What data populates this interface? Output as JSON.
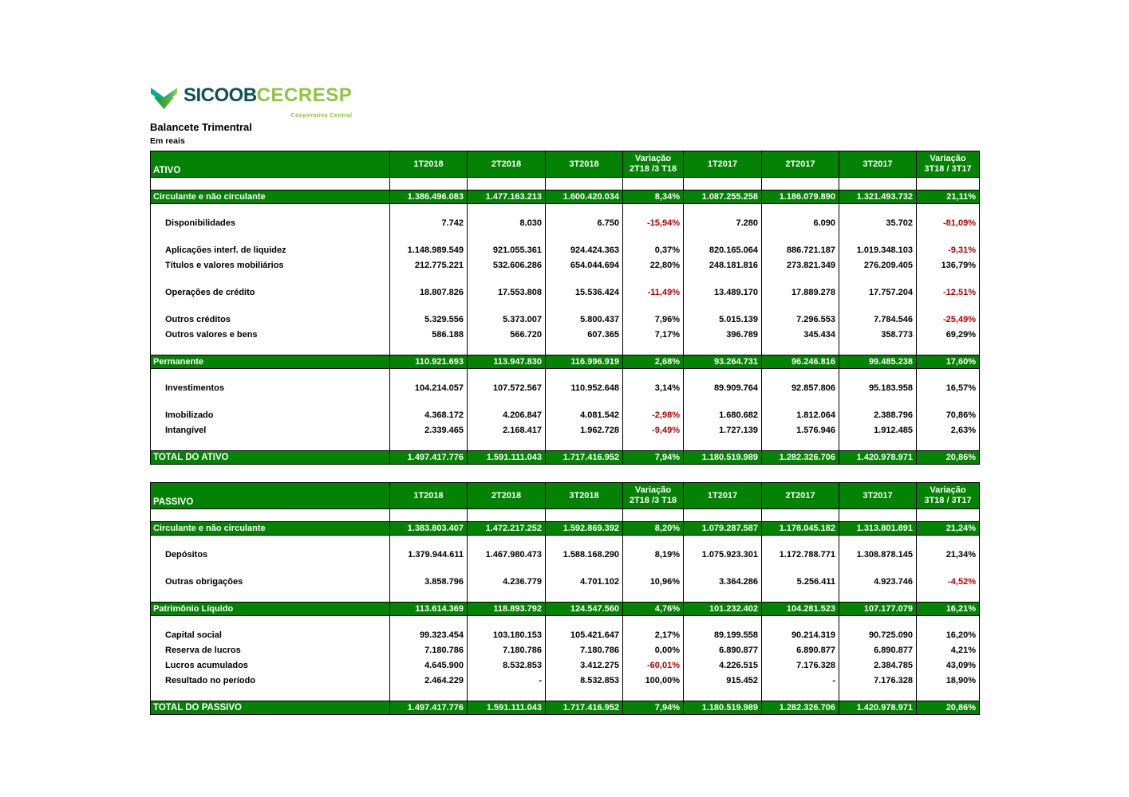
{
  "logo": {
    "sicoob": "SICOOB",
    "cecresp": "CECRESP",
    "tagline": "Cooperativa Central"
  },
  "title": "Balancete Trimentral",
  "subtitle": "Em reais",
  "colors": {
    "band_green": "#038203",
    "negative_red": "#b30000",
    "logo_teal": "#0d5156",
    "logo_lime": "#8dc63f",
    "mark_turquoise": "#00ae9d",
    "mark_green": "#009a57",
    "mark_lime": "#7db61c"
  },
  "columns": [
    "1T2018",
    "2T2018",
    "3T2018",
    "Variação\n2T18 /3 T18",
    "1T2017",
    "2T2017",
    "3T2017",
    "Variação\n3T18 / 3T17"
  ],
  "ativo": {
    "title": "ATIVO",
    "rows": [
      {
        "t": "spacer"
      },
      {
        "t": "section",
        "label": "Circulante e não circulante",
        "v": [
          "1.386.496.083",
          "1.477.163.213",
          "1.600.420.034",
          "8,34%",
          "1.087.255.258",
          "1.186.079.890",
          "1.321.493.732",
          "21,11%"
        ]
      },
      {
        "t": "spacer"
      },
      {
        "t": "item",
        "label": "Disponibilidades",
        "v": [
          "7.742",
          "8.030",
          "6.750",
          "-15,94%",
          "7.280",
          "6.090",
          "35.702",
          "-81,09%"
        ]
      },
      {
        "t": "spacer"
      },
      {
        "t": "item",
        "label": "Aplicações interf. de liquidez",
        "v": [
          "1.148.989.549",
          "921.055.361",
          "924.424.363",
          "0,37%",
          "820.165.064",
          "886.721.187",
          "1.019.348.103",
          "-9,31%"
        ]
      },
      {
        "t": "item",
        "label": "Títulos e valores mobiliários",
        "v": [
          "212.775.221",
          "532.606.286",
          "654.044.694",
          "22,80%",
          "248.181.816",
          "273.821.349",
          "276.209.405",
          "136,79%"
        ]
      },
      {
        "t": "spacer"
      },
      {
        "t": "item",
        "label": "Operações de crédito",
        "v": [
          "18.807.826",
          "17.553.808",
          "15.536.424",
          "-11,49%",
          "13.489.170",
          "17.889.278",
          "17.757.204",
          "-12,51%"
        ]
      },
      {
        "t": "spacer"
      },
      {
        "t": "item",
        "label": "Outros créditos",
        "v": [
          "5.329.556",
          "5.373.007",
          "5.800.437",
          "7,96%",
          "5.015.139",
          "7.296.553",
          "7.784.546",
          "-25,49%"
        ]
      },
      {
        "t": "item",
        "label": "Outros valores e bens",
        "v": [
          "586.188",
          "566.720",
          "607.365",
          "7,17%",
          "396.789",
          "345.434",
          "358.773",
          "69,29%"
        ]
      },
      {
        "t": "spacer"
      },
      {
        "t": "section",
        "label": "Permanente",
        "v": [
          "110.921.693",
          "113.947.830",
          "116.996.919",
          "2,68%",
          "93.264.731",
          "96.246.816",
          "99.485.238",
          "17,60%"
        ]
      },
      {
        "t": "spacer"
      },
      {
        "t": "item",
        "label": "Investimentos",
        "v": [
          "104.214.057",
          "107.572.567",
          "110.952.648",
          "3,14%",
          "89.909.764",
          "92.857.806",
          "95.183.958",
          "16,57%"
        ]
      },
      {
        "t": "spacer"
      },
      {
        "t": "item",
        "label": "Imobilizado",
        "v": [
          "4.368.172",
          "4.206.847",
          "4.081.542",
          "-2,98%",
          "1.680.682",
          "1.812.064",
          "2.388.796",
          "70,86%"
        ]
      },
      {
        "t": "item",
        "label": "Intangível",
        "v": [
          "2.339.465",
          "2.168.417",
          "1.962.728",
          "-9,49%",
          "1.727.139",
          "1.576.946",
          "1.912.485",
          "2,63%"
        ]
      },
      {
        "t": "spacer"
      },
      {
        "t": "total",
        "label": "TOTAL DO ATIVO",
        "v": [
          "1.497.417.776",
          "1.591.111.043",
          "1.717.416.952",
          "7,94%",
          "1.180.519.989",
          "1.282.326.706",
          "1.420.978.971",
          "20,86%"
        ]
      }
    ]
  },
  "passivo": {
    "title": "PASSIVO",
    "rows": [
      {
        "t": "spacer"
      },
      {
        "t": "section",
        "label": "Circulante e não circulante",
        "v": [
          "1.383.803.407",
          "1.472.217.252",
          "1.592.869.392",
          "8,20%",
          "1.079.287.587",
          "1.178.045.182",
          "1.313.801.891",
          "21,24%"
        ]
      },
      {
        "t": "spacer"
      },
      {
        "t": "item",
        "label": "Depósitos",
        "v": [
          "1.379.944.611",
          "1.467.980.473",
          "1.588.168.290",
          "8,19%",
          "1.075.923.301",
          "1.172.788.771",
          "1.308.878.145",
          "21,34%"
        ]
      },
      {
        "t": "spacer"
      },
      {
        "t": "item",
        "label": "Outras obrigações",
        "v": [
          "3.858.796",
          "4.236.779",
          "4.701.102",
          "10,96%",
          "3.364.286",
          "5.256.411",
          "4.923.746",
          "-4,52%"
        ]
      },
      {
        "t": "spacer"
      },
      {
        "t": "section",
        "label": "Patrimônio Líquido",
        "v": [
          "113.614.369",
          "118.893.792",
          "124.547.560",
          "4,76%",
          "101.232.402",
          "104.281.523",
          "107.177.079",
          "16,21%"
        ]
      },
      {
        "t": "spacer"
      },
      {
        "t": "item",
        "label": "Capital social",
        "v": [
          "99.323.454",
          "103.180.153",
          "105.421.647",
          "2,17%",
          "89.199.558",
          "90.214.319",
          "90.725.090",
          "16,20%"
        ]
      },
      {
        "t": "item",
        "label": "Reserva de lucros",
        "v": [
          "7.180.786",
          "7.180.786",
          "7.180.786",
          "0,00%",
          "6.890.877",
          "6.890.877",
          "6.890.877",
          "4,21%"
        ]
      },
      {
        "t": "item",
        "label": "Lucros acumulados",
        "v": [
          "4.645.900",
          "8.532.853",
          "3.412.275",
          "-60,01%",
          "4.226.515",
          "7.176.328",
          "2.384.785",
          "43,09%"
        ]
      },
      {
        "t": "item",
        "label": "Resultado no período",
        "v": [
          "2.464.229",
          "-",
          "8.532.853",
          "100,00%",
          "915.452",
          "-",
          "7.176.328",
          "18,90%"
        ]
      },
      {
        "t": "spacer"
      },
      {
        "t": "total",
        "label": "TOTAL DO PASSIVO",
        "v": [
          "1.497.417.776",
          "1.591.111.043",
          "1.717.416.952",
          "7,94%",
          "1.180.519.989",
          "1.282.326.706",
          "1.420.978.971",
          "20,86%"
        ]
      }
    ]
  }
}
